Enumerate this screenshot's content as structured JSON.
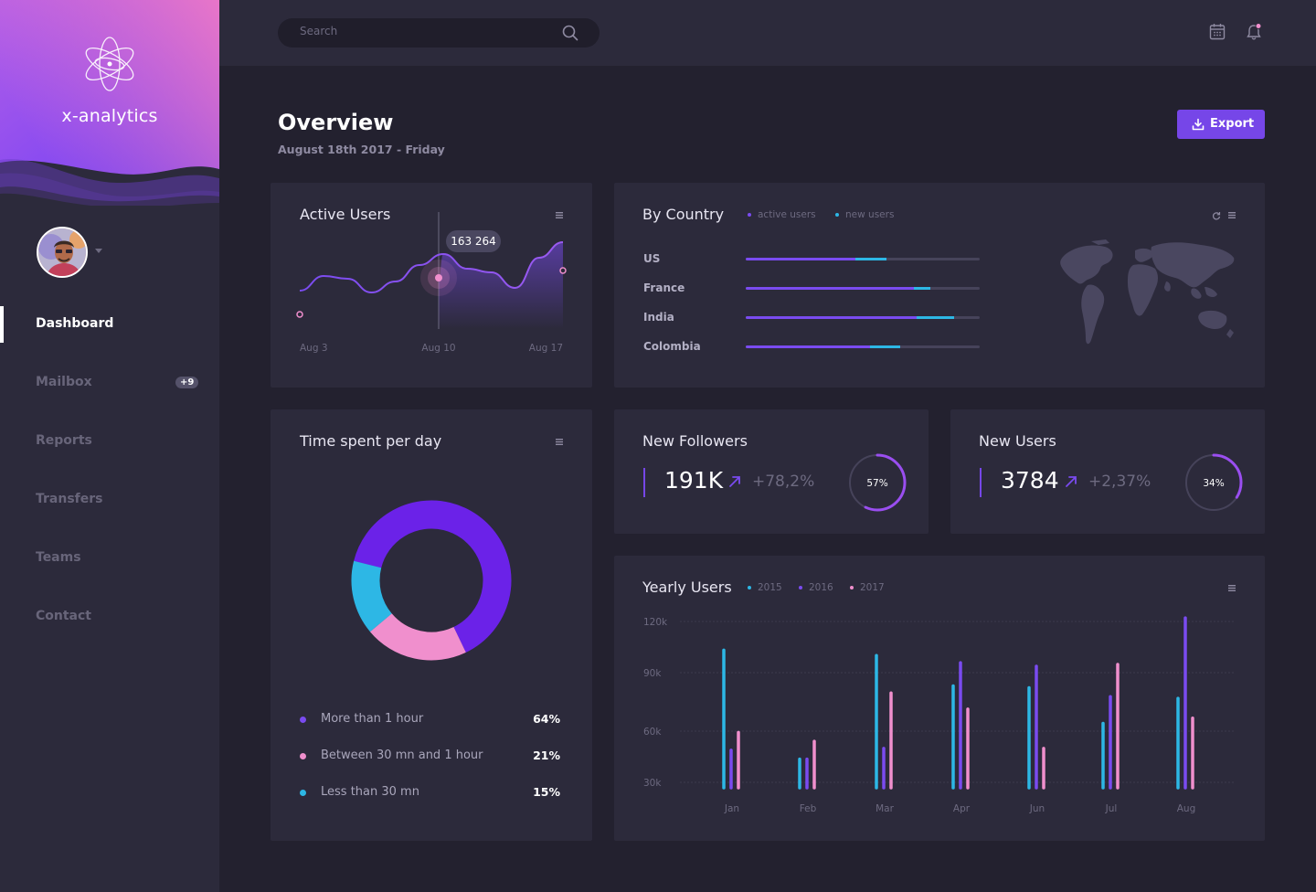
{
  "app": {
    "name": "x-analytics"
  },
  "sidebar": {
    "items": [
      {
        "label": "Dashboard",
        "active": true
      },
      {
        "label": "Mailbox",
        "badge": "+9"
      },
      {
        "label": "Reports"
      },
      {
        "label": "Transfers"
      },
      {
        "label": "Teams"
      },
      {
        "label": "Contact"
      }
    ]
  },
  "topbar": {
    "search_placeholder": "Search",
    "icons": [
      "calendar-icon",
      "bell-icon"
    ]
  },
  "header": {
    "title": "Overview",
    "date": "August  18th  2017 - Friday",
    "export_label": "Export"
  },
  "colors": {
    "accent": "#7646e8",
    "purple": "#7a4bf0",
    "cyan": "#2db7e5",
    "pink": "#f08fcd"
  },
  "active_users": {
    "title": "Active Users",
    "tooltip": "163 264",
    "x_labels": [
      "Aug 3",
      "Aug 10",
      "Aug 17"
    ]
  },
  "by_country": {
    "title": "By Country",
    "legend": [
      "active users",
      "new users"
    ],
    "rows": [
      {
        "country": "US",
        "active": 0.47,
        "new": 0.13
      },
      {
        "country": "France",
        "active": 0.72,
        "new": 0.07
      },
      {
        "country": "India",
        "active": 0.73,
        "new": 0.16
      },
      {
        "country": "Colombia",
        "active": 0.53,
        "new": 0.13
      }
    ]
  },
  "time_spent": {
    "title": "Time spent per day",
    "legend": [
      {
        "label": "More than 1 hour",
        "value": "64%",
        "color": "#7a4bf0"
      },
      {
        "label": "Between 30 mn and 1 hour",
        "value": "21%",
        "color": "#f08fcd"
      },
      {
        "label": "Less than 30 mn",
        "value": "15%",
        "color": "#2db7e5"
      }
    ]
  },
  "new_followers": {
    "title": "New Followers",
    "value": "191K",
    "delta": "+78,2%",
    "ring_label": "57%",
    "ring_fraction": 0.57
  },
  "new_users": {
    "title": "New Users",
    "value": "3784",
    "delta": "+2,37%",
    "ring_label": "34%",
    "ring_fraction": 0.34
  },
  "chart_data": [
    {
      "type": "area",
      "title": "Active Users",
      "x_ticks": [
        "Aug 3",
        "Aug 10",
        "Aug 17"
      ],
      "series": [
        {
          "values": [
            42,
            58,
            55,
            40,
            52,
            70,
            82,
            66,
            62,
            45,
            78,
            95
          ]
        }
      ],
      "highlight": {
        "label": "163 264"
      }
    },
    {
      "type": "pie",
      "title": "Time spent per day",
      "slices": [
        {
          "label": "More than 1 hour",
          "value": 64
        },
        {
          "label": "Between 30 mn and 1 hour",
          "value": 21
        },
        {
          "label": "Less than 30 mn",
          "value": 15
        }
      ]
    },
    {
      "type": "bar",
      "title": "Yearly Users",
      "categories": [
        "Jan",
        "Feb",
        "Mar",
        "Apr",
        "Jun",
        "Jul",
        "Aug"
      ],
      "y_ticks": [
        "30k",
        "60k",
        "90k",
        "120k"
      ],
      "ylim": [
        20000,
        125000
      ],
      "series": [
        {
          "name": "2015",
          "values": [
            106000,
            45000,
            103000,
            86000,
            85000,
            65000,
            79000
          ]
        },
        {
          "name": "2016",
          "values": [
            50000,
            45000,
            51000,
            99000,
            97000,
            80000,
            124000
          ]
        },
        {
          "name": "2017",
          "values": [
            60000,
            55000,
            82000,
            73000,
            51000,
            98000,
            68000
          ]
        }
      ]
    }
  ]
}
